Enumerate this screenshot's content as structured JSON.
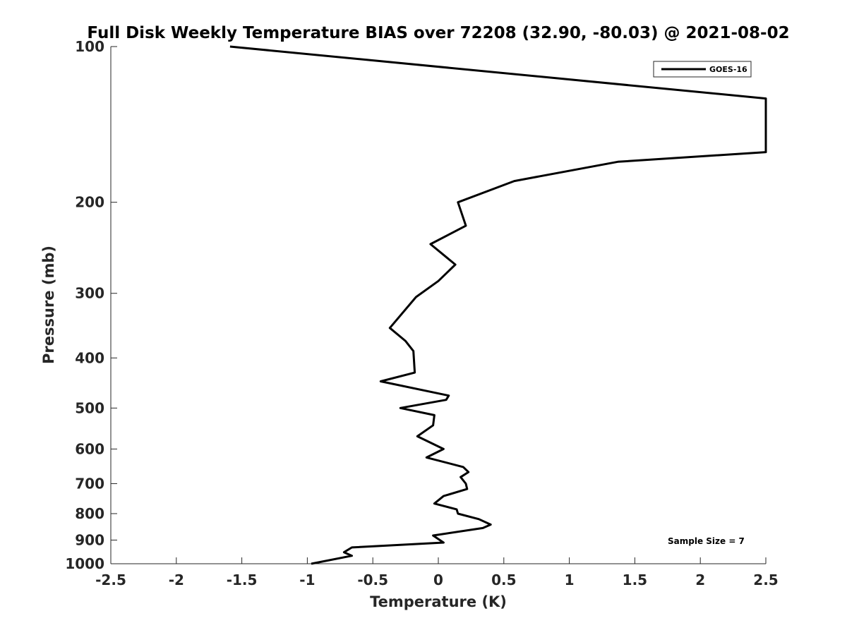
{
  "chart_data": {
    "type": "line",
    "title": "Full Disk Weekly Temperature BIAS over 72208 (32.90, -80.03) @ 2021-08-02",
    "xlabel": "Temperature (K)",
    "ylabel": "Pressure (mb)",
    "xlim": [
      -2.5,
      2.5
    ],
    "ylim": [
      100,
      1000
    ],
    "y_scale": "log",
    "y_reversed": true,
    "x_ticks": [
      -2.5,
      -2,
      -1.5,
      -1,
      -0.5,
      0,
      0.5,
      1,
      1.5,
      2,
      2.5
    ],
    "x_tick_labels": [
      "-2.5",
      "-2",
      "-1.5",
      "-1",
      "-0.5",
      "0",
      "0.5",
      "1",
      "1.5",
      "2",
      "2.5"
    ],
    "y_ticks": [
      100,
      200,
      300,
      400,
      500,
      600,
      700,
      800,
      900,
      1000
    ],
    "y_tick_labels": [
      "100",
      "200",
      "300",
      "400",
      "500",
      "600",
      "700",
      "800",
      "900",
      "1000"
    ],
    "grid": false,
    "legend": "top-right",
    "annotation": "Sample Size = 7",
    "series": [
      {
        "name": "GOES-16",
        "color": "#000000",
        "points": [
          {
            "x": -1.59,
            "y": 100
          },
          {
            "x": 2.5,
            "y": 126
          },
          {
            "x": 2.5,
            "y": 160
          },
          {
            "x": 1.37,
            "y": 167
          },
          {
            "x": 0.58,
            "y": 182
          },
          {
            "x": 0.15,
            "y": 200
          },
          {
            "x": 0.21,
            "y": 222
          },
          {
            "x": -0.06,
            "y": 241
          },
          {
            "x": 0.13,
            "y": 264
          },
          {
            "x": 0.0,
            "y": 284
          },
          {
            "x": -0.17,
            "y": 305
          },
          {
            "x": -0.37,
            "y": 350
          },
          {
            "x": -0.25,
            "y": 371
          },
          {
            "x": -0.19,
            "y": 388
          },
          {
            "x": -0.18,
            "y": 427
          },
          {
            "x": -0.44,
            "y": 444
          },
          {
            "x": 0.08,
            "y": 473
          },
          {
            "x": 0.06,
            "y": 482
          },
          {
            "x": -0.29,
            "y": 500
          },
          {
            "x": -0.03,
            "y": 516
          },
          {
            "x": -0.04,
            "y": 540
          },
          {
            "x": -0.16,
            "y": 567
          },
          {
            "x": 0.04,
            "y": 600
          },
          {
            "x": -0.09,
            "y": 623
          },
          {
            "x": 0.19,
            "y": 650
          },
          {
            "x": 0.23,
            "y": 665
          },
          {
            "x": 0.17,
            "y": 680
          },
          {
            "x": 0.21,
            "y": 700
          },
          {
            "x": 0.22,
            "y": 717
          },
          {
            "x": 0.04,
            "y": 740
          },
          {
            "x": -0.03,
            "y": 765
          },
          {
            "x": 0.14,
            "y": 785
          },
          {
            "x": 0.15,
            "y": 800
          },
          {
            "x": 0.31,
            "y": 820
          },
          {
            "x": 0.4,
            "y": 840
          },
          {
            "x": 0.34,
            "y": 853
          },
          {
            "x": -0.04,
            "y": 882
          },
          {
            "x": 0.04,
            "y": 910
          },
          {
            "x": -0.66,
            "y": 930
          },
          {
            "x": -0.72,
            "y": 950
          },
          {
            "x": -0.66,
            "y": 965
          },
          {
            "x": -0.97,
            "y": 1000
          }
        ]
      }
    ]
  }
}
